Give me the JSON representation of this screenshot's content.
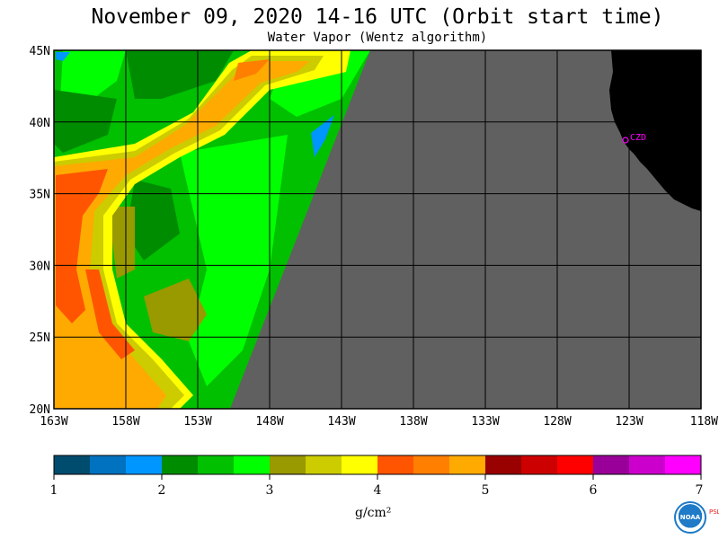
{
  "header": {
    "title": "November 09, 2020  14-16 UTC  (Orbit start time)",
    "subtitle": "Water Vapor (Wentz algorithm)"
  },
  "map": {
    "lat_labels": [
      "45N",
      "40N",
      "35N",
      "30N",
      "25N",
      "20N"
    ],
    "lon_labels": [
      "163W",
      "158W",
      "153W",
      "148W",
      "143W",
      "138W",
      "133W",
      "128W",
      "123W",
      "118W"
    ],
    "station_label": "CZD",
    "colors": {
      "no_data": "#606060",
      "land": "#000000",
      "station": "#ff00ff",
      "grid": "#000000"
    }
  },
  "colorbar": {
    "labels": [
      "1",
      "2",
      "3",
      "4",
      "5",
      "6",
      "7"
    ],
    "unit": "g/cm²",
    "colors": [
      "#004c6e",
      "#0072bf",
      "#0096ff",
      "#008c00",
      "#00c000",
      "#00ff00",
      "#999900",
      "#cccc00",
      "#ffff00",
      "#ff5500",
      "#ff7f00",
      "#ffaa00",
      "#990000",
      "#cc0000",
      "#ff0000",
      "#990099",
      "#cc00cc",
      "#ff00ff"
    ]
  },
  "logo": {
    "text": "NOAA",
    "side_text": "PSL"
  }
}
